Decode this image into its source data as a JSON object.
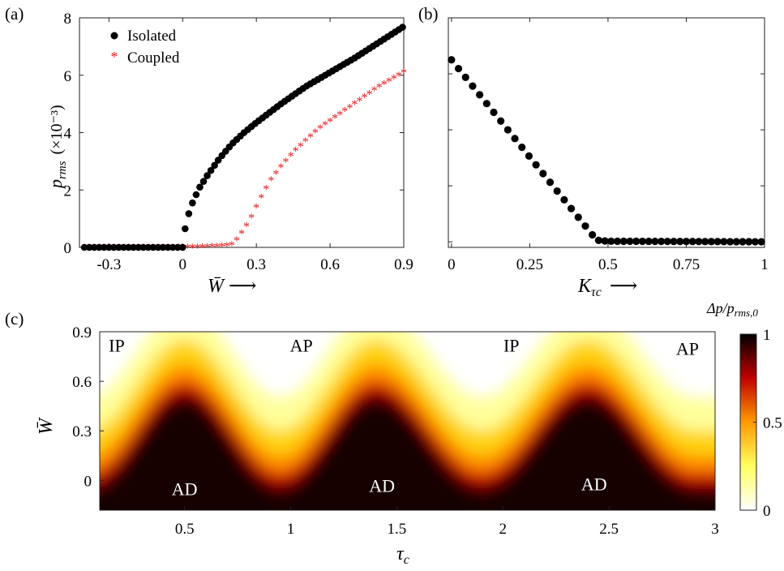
{
  "chart_data": [
    {
      "panel": "(a)",
      "type": "scatter",
      "xlabel": "W̄ ⟶",
      "ylabel_main": "p",
      "ylabel_sub": "rms",
      "ylabel_unit": "(×10⁻³)",
      "xlim": [
        -0.42,
        0.9
      ],
      "ylim": [
        0,
        8
      ],
      "x_ticks": [
        {
          "v": -0.3,
          "label": "-0.3"
        },
        {
          "v": 0,
          "label": "0"
        },
        {
          "v": 0.3,
          "label": "0.3"
        },
        {
          "v": 0.6,
          "label": "0.6"
        },
        {
          "v": 0.9,
          "label": "0.9"
        }
      ],
      "y_ticks": [
        {
          "v": 0,
          "label": "0"
        },
        {
          "v": 2,
          "label": "2"
        },
        {
          "v": 4,
          "label": "4"
        },
        {
          "v": 6,
          "label": "6"
        },
        {
          "v": 8,
          "label": "8"
        }
      ],
      "legend_position": "top-left",
      "series": [
        {
          "name": "Isolated",
          "marker": "filled-circle",
          "color": "#000000",
          "points": [
            [
              -0.4,
              0
            ],
            [
              -0.05,
              0
            ],
            [
              0,
              0
            ],
            [
              0.01,
              0.65
            ],
            [
              0.03,
              1.35
            ],
            [
              0.05,
              1.75
            ],
            [
              0.07,
              2.1
            ],
            [
              0.1,
              2.5
            ],
            [
              0.15,
              3.1
            ],
            [
              0.2,
              3.6
            ],
            [
              0.25,
              4.0
            ],
            [
              0.3,
              4.35
            ],
            [
              0.4,
              5.0
            ],
            [
              0.5,
              5.6
            ],
            [
              0.6,
              6.1
            ],
            [
              0.7,
              6.6
            ],
            [
              0.8,
              7.15
            ],
            [
              0.9,
              7.7
            ]
          ]
        },
        {
          "name": "Coupled",
          "marker": "asterisk",
          "color": "#e8191c",
          "points": [
            [
              -0.4,
              0
            ],
            [
              0,
              0
            ],
            [
              0.05,
              0
            ],
            [
              0.1,
              0.02
            ],
            [
              0.15,
              0.03
            ],
            [
              0.2,
              0.08
            ],
            [
              0.22,
              0.25
            ],
            [
              0.24,
              0.5
            ],
            [
              0.26,
              0.75
            ],
            [
              0.28,
              1.05
            ],
            [
              0.3,
              1.4
            ],
            [
              0.33,
              1.9
            ],
            [
              0.36,
              2.35
            ],
            [
              0.4,
              2.8
            ],
            [
              0.45,
              3.3
            ],
            [
              0.5,
              3.7
            ],
            [
              0.55,
              4.1
            ],
            [
              0.6,
              4.4
            ],
            [
              0.7,
              5.0
            ],
            [
              0.8,
              5.6
            ],
            [
              0.9,
              6.1
            ]
          ]
        }
      ]
    },
    {
      "panel": "(b)",
      "type": "scatter",
      "xlabel_main": "K",
      "xlabel_sub": "τc",
      "xlabel_arrow": "⟶",
      "xlim": [
        -0.01,
        1.0
      ],
      "ylim": [
        -0.2,
        8
      ],
      "x_ticks": [
        {
          "v": 0,
          "label": "0"
        },
        {
          "v": 0.25,
          "label": "0.25"
        },
        {
          "v": 0.5,
          "label": "0.5"
        },
        {
          "v": 0.75,
          "label": "0.75"
        },
        {
          "v": 1,
          "label": "1"
        }
      ],
      "y_ticks_unlabeled": [
        0,
        2,
        4,
        6,
        8
      ],
      "series": [
        {
          "marker": "filled-circle",
          "color": "#000000",
          "points": [
            [
              0,
              6.5
            ],
            [
              0.45,
              0.25
            ],
            [
              0.47,
              0.05
            ],
            [
              0.5,
              0.02
            ],
            [
              1.0,
              0.0
            ]
          ]
        }
      ]
    },
    {
      "panel": "(c)",
      "type": "heatmap",
      "xlabel_main": "τ",
      "xlabel_sub": "c",
      "ylabel": "W̄",
      "xlim": [
        0.1,
        3.0
      ],
      "ylim": [
        -0.18,
        0.9
      ],
      "x_ticks": [
        {
          "v": 0.5,
          "label": "0.5"
        },
        {
          "v": 1,
          "label": "1"
        },
        {
          "v": 1.5,
          "label": "1.5"
        },
        {
          "v": 2,
          "label": "2"
        },
        {
          "v": 2.5,
          "label": "2.5"
        },
        {
          "v": 3,
          "label": "3"
        }
      ],
      "y_ticks": [
        {
          "v": 0,
          "label": "0"
        },
        {
          "v": 0.3,
          "label": "0.3"
        },
        {
          "v": 0.6,
          "label": "0.6"
        },
        {
          "v": 0.9,
          "label": "0.9"
        }
      ],
      "colorbar": {
        "title_main": "Δp/p",
        "title_sub": "rms,0",
        "range": [
          0,
          1
        ],
        "ticks": [
          {
            "v": 0,
            "label": "0"
          },
          {
            "v": 0.5,
            "label": "0.5"
          },
          {
            "v": 1,
            "label": "1"
          }
        ]
      },
      "peak_tau": [
        0.5,
        1.4,
        2.4
      ],
      "valley_tau": [
        0.95,
        1.9,
        2.9
      ],
      "boundary_at_peak": 0.5,
      "boundary_at_valley": -0.05,
      "regions": [
        {
          "label": "IP",
          "tau": 0.18,
          "w": 0.82,
          "color": "#000000"
        },
        {
          "label": "AP",
          "tau": 1.05,
          "w": 0.82,
          "color": "#000000"
        },
        {
          "label": "IP",
          "tau": 2.04,
          "w": 0.82,
          "color": "#000000"
        },
        {
          "label": "AP",
          "tau": 2.87,
          "w": 0.8,
          "color": "#000000"
        },
        {
          "label": "AD",
          "tau": 0.5,
          "w": -0.05,
          "color": "#ffffff"
        },
        {
          "label": "AD",
          "tau": 1.43,
          "w": -0.03,
          "color": "#ffffff"
        },
        {
          "label": "AD",
          "tau": 2.43,
          "w": -0.02,
          "color": "#ffffff"
        }
      ]
    }
  ]
}
